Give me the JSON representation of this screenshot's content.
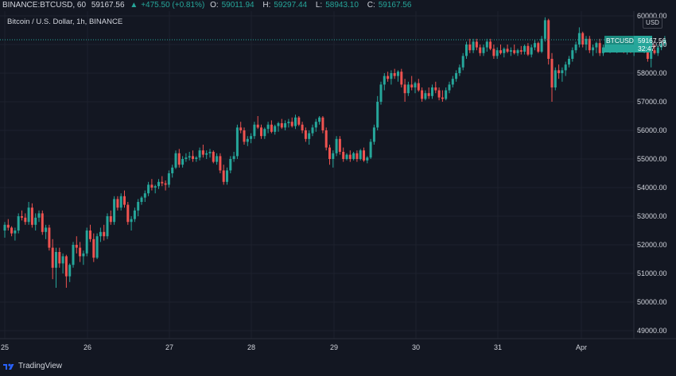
{
  "header": {
    "symbol": "BINANCE:BTCUSD, 60",
    "last": "59167.56",
    "change_arrow": "▲",
    "change": "+475.50 (+0.81%)",
    "open_label": "O:",
    "open": "59011.94",
    "high_label": "H:",
    "high": "59297.44",
    "low_label": "L:",
    "low": "58943.10",
    "close_label": "C:",
    "close": "59167.56"
  },
  "subtitle": "Bitcoin / U.S. Dollar, 1h, BINANCE",
  "price_scale": {
    "currency": "USD"
  },
  "price_tag": {
    "symbol": "BTCUSD",
    "price": "59167.56",
    "countdown": "32:47"
  },
  "footer": {
    "brand": "TradingView"
  },
  "colors": {
    "background": "#131722",
    "up": "#26a69a",
    "down": "#ef5350",
    "grid": "#1e222d",
    "text": "#d1d4dc"
  },
  "chart_data": {
    "type": "candlestick",
    "title": "Bitcoin / U.S. Dollar, 1h, BINANCE",
    "x_ticks": [
      "25",
      "26",
      "27",
      "28",
      "29",
      "30",
      "31",
      "Apr"
    ],
    "y_ticks": [
      "60000.00",
      "59000.00",
      "58000.00",
      "57000.00",
      "56000.00",
      "55000.00",
      "54000.00",
      "53000.00",
      "52000.00",
      "51000.00",
      "50000.00",
      "49000.00"
    ],
    "ylim": [
      48650,
      60150
    ],
    "grid": true,
    "ohlc_hourly": [
      [
        52500,
        52800,
        52250,
        52700
      ],
      [
        52700,
        52900,
        52500,
        52600
      ],
      [
        52600,
        52650,
        52300,
        52400
      ],
      [
        52400,
        52600,
        52150,
        52500
      ],
      [
        52500,
        53100,
        52400,
        53000
      ],
      [
        53000,
        53200,
        52850,
        52950
      ],
      [
        52950,
        53100,
        52700,
        52800
      ],
      [
        52800,
        53500,
        52700,
        53300
      ],
      [
        53300,
        53450,
        52600,
        52700
      ],
      [
        52700,
        53100,
        52500,
        52950
      ],
      [
        52950,
        53200,
        52800,
        53100
      ],
      [
        53100,
        53200,
        52350,
        52450
      ],
      [
        52450,
        52700,
        52200,
        52600
      ],
      [
        52600,
        52700,
        51800,
        51900
      ],
      [
        51900,
        52200,
        50800,
        51200
      ],
      [
        51200,
        51900,
        50500,
        51750
      ],
      [
        51750,
        51900,
        51200,
        51350
      ],
      [
        51350,
        51700,
        51000,
        51600
      ],
      [
        51600,
        51650,
        50500,
        50900
      ],
      [
        50900,
        51350,
        50700,
        51300
      ],
      [
        51300,
        52100,
        51200,
        52000
      ],
      [
        52000,
        52300,
        51700,
        51900
      ],
      [
        51900,
        52100,
        51400,
        51600
      ],
      [
        51600,
        51800,
        51300,
        51700
      ],
      [
        51700,
        52600,
        51600,
        52500
      ],
      [
        52500,
        52700,
        52100,
        52200
      ],
      [
        52200,
        52400,
        51400,
        51550
      ],
      [
        51550,
        52400,
        51500,
        52300
      ],
      [
        52300,
        52600,
        52100,
        52450
      ],
      [
        52450,
        52700,
        52150,
        52300
      ],
      [
        52300,
        53100,
        52200,
        53000
      ],
      [
        53000,
        53200,
        52700,
        52800
      ],
      [
        52800,
        53700,
        52700,
        53600
      ],
      [
        53600,
        53700,
        53200,
        53300
      ],
      [
        53300,
        53800,
        53200,
        53700
      ],
      [
        53700,
        53900,
        53300,
        53400
      ],
      [
        53400,
        53500,
        52700,
        52800
      ],
      [
        52800,
        53000,
        52500,
        52900
      ],
      [
        52900,
        53300,
        52800,
        53200
      ],
      [
        53200,
        53600,
        53000,
        53500
      ],
      [
        53500,
        53700,
        53400,
        53650
      ],
      [
        53650,
        53900,
        53500,
        53800
      ],
      [
        53800,
        54200,
        53700,
        54100
      ],
      [
        54100,
        54300,
        53900,
        54000
      ],
      [
        54000,
        54100,
        53800,
        54050
      ],
      [
        54050,
        54300,
        53950,
        54200
      ],
      [
        54200,
        54400,
        54050,
        54150
      ],
      [
        54150,
        54250,
        53900,
        54100
      ],
      [
        54100,
        54600,
        54000,
        54500
      ],
      [
        54500,
        54800,
        54350,
        54700
      ],
      [
        54700,
        55300,
        54650,
        55200
      ],
      [
        55200,
        55350,
        54700,
        54800
      ],
      [
        54800,
        55100,
        54700,
        55000
      ],
      [
        55000,
        55200,
        54900,
        55050
      ],
      [
        55050,
        55250,
        54950,
        55100
      ],
      [
        55100,
        55300,
        54900,
        55000
      ],
      [
        55000,
        55100,
        54900,
        55050
      ],
      [
        55050,
        55400,
        54950,
        55300
      ],
      [
        55300,
        55500,
        55050,
        55150
      ],
      [
        55150,
        55300,
        55000,
        55200
      ],
      [
        55200,
        55350,
        55050,
        55250
      ],
      [
        55250,
        55300,
        54850,
        54900
      ],
      [
        54900,
        55200,
        54800,
        55100
      ],
      [
        55100,
        55200,
        54500,
        54600
      ],
      [
        54600,
        54800,
        54100,
        54200
      ],
      [
        54200,
        54700,
        54100,
        54600
      ],
      [
        54600,
        55100,
        54500,
        55000
      ],
      [
        55000,
        55250,
        54900,
        55100
      ],
      [
        55100,
        56200,
        55000,
        56100
      ],
      [
        56100,
        56300,
        55900,
        56000
      ],
      [
        56000,
        56100,
        55500,
        55600
      ],
      [
        55600,
        55800,
        55450,
        55700
      ],
      [
        55700,
        55900,
        55550,
        55800
      ],
      [
        55800,
        56300,
        55700,
        56200
      ],
      [
        56200,
        56500,
        56050,
        56100
      ],
      [
        56100,
        56200,
        55700,
        55800
      ],
      [
        55800,
        56100,
        55700,
        56050
      ],
      [
        56050,
        56300,
        55900,
        56200
      ],
      [
        56200,
        56350,
        55900,
        55950
      ],
      [
        55950,
        56200,
        55850,
        56150
      ],
      [
        56150,
        56300,
        55950,
        56250
      ],
      [
        56250,
        56400,
        56050,
        56100
      ],
      [
        56100,
        56350,
        56000,
        56250
      ],
      [
        56250,
        56400,
        56100,
        56300
      ],
      [
        56300,
        56450,
        56100,
        56150
      ],
      [
        56150,
        56550,
        56050,
        56450
      ],
      [
        56450,
        56500,
        56150,
        56200
      ],
      [
        56200,
        56300,
        55900,
        56000
      ],
      [
        56000,
        56100,
        55600,
        55700
      ],
      [
        55700,
        56000,
        55500,
        55900
      ],
      [
        55900,
        56200,
        55800,
        56100
      ],
      [
        56100,
        56400,
        55950,
        56300
      ],
      [
        56300,
        56500,
        56200,
        56450
      ],
      [
        56450,
        56500,
        55900,
        56000
      ],
      [
        56000,
        56100,
        55300,
        55400
      ],
      [
        55400,
        55500,
        54800,
        55000
      ],
      [
        55000,
        55300,
        54700,
        55200
      ],
      [
        55200,
        55800,
        55100,
        55700
      ],
      [
        55700,
        55800,
        55150,
        55250
      ],
      [
        55250,
        55400,
        54900,
        55000
      ],
      [
        55000,
        55200,
        54950,
        55150
      ],
      [
        55150,
        55300,
        54900,
        55000
      ],
      [
        55000,
        55250,
        54950,
        55200
      ],
      [
        55200,
        55300,
        54900,
        55000
      ],
      [
        55000,
        55350,
        54950,
        55300
      ],
      [
        55300,
        55400,
        54900,
        54950
      ],
      [
        54950,
        55100,
        54850,
        55050
      ],
      [
        55050,
        55700,
        55000,
        55600
      ],
      [
        55600,
        56200,
        55500,
        56100
      ],
      [
        56100,
        57200,
        56000,
        57000
      ],
      [
        57000,
        57700,
        56900,
        57600
      ],
      [
        57600,
        58000,
        57400,
        57900
      ],
      [
        57900,
        58050,
        57700,
        57800
      ],
      [
        57800,
        58100,
        57600,
        58000
      ],
      [
        58000,
        58150,
        57800,
        57900
      ],
      [
        57900,
        58100,
        57700,
        58050
      ],
      [
        58050,
        58150,
        57500,
        57600
      ],
      [
        57600,
        57800,
        57000,
        57300
      ],
      [
        57300,
        57700,
        57200,
        57600
      ],
      [
        57600,
        57900,
        57400,
        57500
      ],
      [
        57500,
        57700,
        57300,
        57650
      ],
      [
        57650,
        57800,
        57350,
        57400
      ],
      [
        57400,
        57500,
        57000,
        57100
      ],
      [
        57100,
        57400,
        57050,
        57300
      ],
      [
        57300,
        57500,
        57100,
        57200
      ],
      [
        57200,
        57600,
        57100,
        57500
      ],
      [
        57500,
        57700,
        57300,
        57400
      ],
      [
        57400,
        57500,
        57050,
        57150
      ],
      [
        57150,
        57400,
        57000,
        57100
      ],
      [
        57100,
        57500,
        57050,
        57400
      ],
      [
        57400,
        57700,
        57300,
        57600
      ],
      [
        57600,
        57900,
        57500,
        57800
      ],
      [
        57800,
        58100,
        57700,
        58000
      ],
      [
        58000,
        58300,
        57900,
        58200
      ],
      [
        58200,
        58700,
        58100,
        58600
      ],
      [
        58600,
        59100,
        58500,
        59000
      ],
      [
        59000,
        59200,
        58700,
        58800
      ],
      [
        58800,
        59200,
        58700,
        59100
      ],
      [
        59100,
        59200,
        58800,
        58900
      ],
      [
        58900,
        59000,
        58600,
        58700
      ],
      [
        58700,
        59000,
        58600,
        58900
      ],
      [
        58900,
        59200,
        58750,
        59100
      ],
      [
        59100,
        59200,
        58800,
        58850
      ],
      [
        58850,
        59000,
        58500,
        58600
      ],
      [
        58600,
        58900,
        58500,
        58800
      ],
      [
        58800,
        59000,
        58650,
        58700
      ],
      [
        58700,
        58900,
        58550,
        58850
      ],
      [
        58850,
        59000,
        58700,
        58750
      ],
      [
        58750,
        58900,
        58600,
        58800
      ],
      [
        58800,
        59000,
        58650,
        58700
      ],
      [
        58700,
        58850,
        58600,
        58800
      ],
      [
        58800,
        58950,
        58650,
        58750
      ],
      [
        58750,
        59000,
        58650,
        58950
      ],
      [
        58950,
        59050,
        58600,
        58650
      ],
      [
        58650,
        59000,
        58550,
        58900
      ],
      [
        58900,
        59150,
        58800,
        59050
      ],
      [
        59050,
        59100,
        58700,
        58750
      ],
      [
        58750,
        59300,
        58700,
        59200
      ],
      [
        59200,
        59950,
        59100,
        59850
      ],
      [
        59850,
        59900,
        58300,
        58500
      ],
      [
        58500,
        58700,
        57000,
        57500
      ],
      [
        57500,
        58200,
        57400,
        58100
      ],
      [
        58100,
        58300,
        57800,
        58000
      ],
      [
        58000,
        58200,
        57700,
        58100
      ],
      [
        58100,
        58400,
        57900,
        58300
      ],
      [
        58300,
        58600,
        58200,
        58500
      ],
      [
        58500,
        58900,
        58400,
        58800
      ],
      [
        58800,
        59100,
        58700,
        59000
      ],
      [
        59000,
        59600,
        58900,
        59400
      ],
      [
        59400,
        59450,
        58900,
        59000
      ],
      [
        59000,
        59300,
        58800,
        59200
      ],
      [
        59200,
        59300,
        58700,
        58800
      ],
      [
        58800,
        59000,
        58600,
        58900
      ],
      [
        58900,
        59100,
        58700,
        59050
      ],
      [
        59050,
        59200,
        58600,
        58700
      ],
      [
        58700,
        59000,
        58600,
        58900
      ],
      [
        58900,
        59100,
        58750,
        58800
      ],
      [
        58800,
        59300,
        58700,
        59200
      ],
      [
        59200,
        59300,
        58800,
        58850
      ],
      [
        58850,
        59100,
        58700,
        59000
      ],
      [
        59000,
        59200,
        58850,
        58900
      ],
      [
        58900,
        59000,
        58700,
        58800
      ],
      [
        58800,
        58950,
        58650,
        58900
      ],
      [
        58900,
        59050,
        58700,
        58750
      ],
      [
        58750,
        58950,
        58600,
        58900
      ],
      [
        58900,
        59100,
        58750,
        59050
      ],
      [
        59050,
        59150,
        58800,
        58850
      ],
      [
        58850,
        59050,
        58700,
        59000
      ],
      [
        59000,
        59050,
        58400,
        58500
      ],
      [
        58500,
        58900,
        58200,
        58800
      ],
      [
        58800,
        59000,
        58650,
        58700
      ],
      [
        58700,
        59000,
        58600,
        58900
      ],
      [
        58900,
        59100,
        58800,
        59012
      ],
      [
        59012,
        59297,
        58943,
        59168
      ]
    ],
    "last_price": 59167.56
  }
}
